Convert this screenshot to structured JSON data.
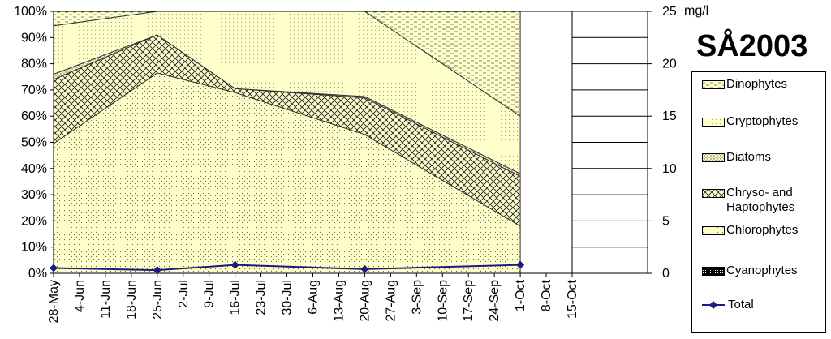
{
  "chart_data": {
    "type": "area",
    "title": "SÅ2003",
    "stacked": true,
    "percent": true,
    "x": [
      "28-May",
      "25-Jun",
      "16-Jul",
      "20-Aug",
      "1-Oct"
    ],
    "x_tick_labels": [
      "28-May",
      "4-Jun",
      "11-Jun",
      "18-Jun",
      "25-Jun",
      "2-Jul",
      "9-Jul",
      "16-Jul",
      "23-Jul",
      "30-Jul",
      "6-Aug",
      "13-Aug",
      "20-Aug",
      "27-Aug",
      "3-Sep",
      "10-Sep",
      "17-Sep",
      "24-Sep",
      "1-Oct",
      "8-Oct",
      "15-Oct"
    ],
    "y_left_ticks": [
      "0%",
      "10%",
      "20%",
      "30%",
      "40%",
      "50%",
      "60%",
      "70%",
      "80%",
      "90%",
      "100%"
    ],
    "y_left_lim": [
      0,
      100
    ],
    "y_right_ticks": [
      "0",
      "5",
      "10",
      "15",
      "20",
      "25"
    ],
    "y_right_lim": [
      0,
      25
    ],
    "y_right_label": "mg/l",
    "grid": true,
    "legend_position": "right",
    "series": [
      {
        "name": "Cyanophytes",
        "values": [
          0,
          0,
          0,
          0,
          0
        ],
        "color": "#000000"
      },
      {
        "name": "Chlorophytes",
        "values": [
          49.5,
          76.5,
          69,
          53,
          18
        ],
        "color": "#ffffcc"
      },
      {
        "name": "Chryso- and Haptophytes",
        "values": [
          24.5,
          14.5,
          1.5,
          14,
          19
        ],
        "color": "#ffffcc"
      },
      {
        "name": "Diatoms",
        "values": [
          2,
          0,
          0,
          0.5,
          1
        ],
        "color": "#ffffcc"
      },
      {
        "name": "Cryptophytes",
        "values": [
          18.5,
          9,
          29.5,
          32.5,
          22
        ],
        "color": "#ffffcc"
      },
      {
        "name": "Dinophytes",
        "values": [
          5.5,
          0,
          0,
          0,
          40
        ],
        "color": "#ffffcc"
      }
    ],
    "total": {
      "name": "Total",
      "axis": "right",
      "values": [
        0.5,
        0.3,
        0.8,
        0.4,
        0.8
      ],
      "color": "#1a1a80"
    }
  },
  "legend": [
    {
      "name": "Dinophytes",
      "pattern": "dino"
    },
    {
      "name": "Cryptophytes",
      "pattern": "crypto"
    },
    {
      "name": "Diatoms",
      "pattern": "diatom"
    },
    {
      "name": "Chryso- and Haptophytes",
      "pattern": "chryso"
    },
    {
      "name": "Chlorophytes",
      "pattern": "chloro"
    },
    {
      "name": "Cyanophytes",
      "pattern": "cyano"
    },
    {
      "name": "Total",
      "pattern": "line"
    }
  ]
}
